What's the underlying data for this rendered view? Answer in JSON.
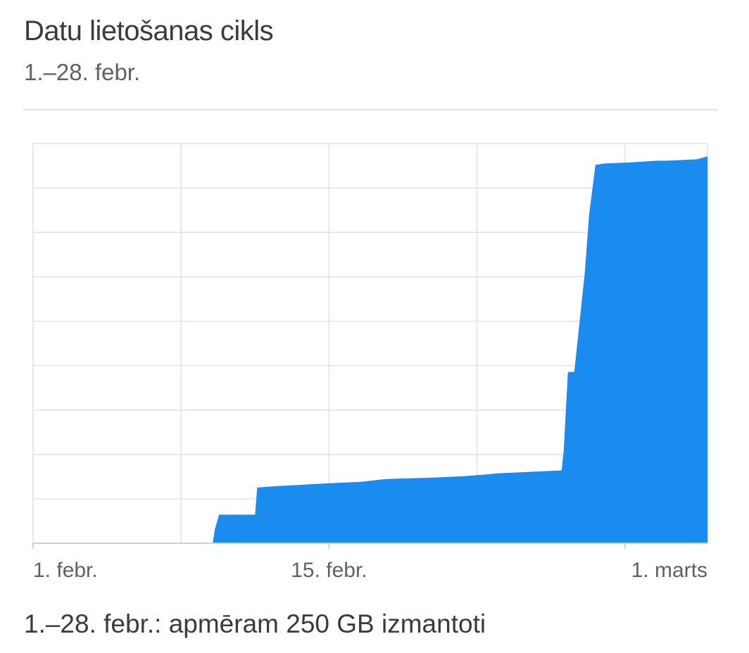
{
  "header": {
    "title": "Datu lietošanas cikls",
    "subtitle": "1.–28. febr."
  },
  "summary": {
    "text": "1.–28. febr.: apmēram 250 GB izmantoti"
  },
  "colors": {
    "fill": "#1a8cf0",
    "grid": "#e2e2e2",
    "axis": "#d0d0d0"
  },
  "chart_data": {
    "type": "area",
    "title": "Datu lietošanas cikls",
    "subtitle": "1.–28. febr.",
    "x_unit": "day",
    "x_ticks": [
      {
        "day": 1,
        "label": "1. febr."
      },
      {
        "day": 15,
        "label": "15. febr."
      },
      {
        "day": 29,
        "label": "1. marts"
      }
    ],
    "x_range": [
      1,
      32.9
    ],
    "y_range": [
      0,
      280
    ],
    "grid": true,
    "series": [
      {
        "x": [
          8.1,
          9.5,
          9.6,
          9.8,
          11.5,
          11.6,
          12.5,
          15.0,
          16.5,
          17.7,
          20.0,
          21.4,
          22.3,
          23.0,
          26.0,
          26.1,
          26.3,
          26.6,
          27.1,
          27.3,
          27.6,
          28.0,
          29.5,
          30.5,
          31.0,
          32.4,
          32.9
        ],
        "y": [
          0.5,
          0.5,
          10,
          20,
          20,
          39,
          40,
          42,
          43,
          45,
          46,
          47,
          48,
          49,
          51,
          65,
          120,
          120,
          190,
          230,
          265,
          266,
          267,
          268,
          268,
          269,
          271
        ]
      }
    ],
    "annotations": {
      "summary": "1.–28. febr.: apmēram 250 GB izmantoti"
    }
  }
}
